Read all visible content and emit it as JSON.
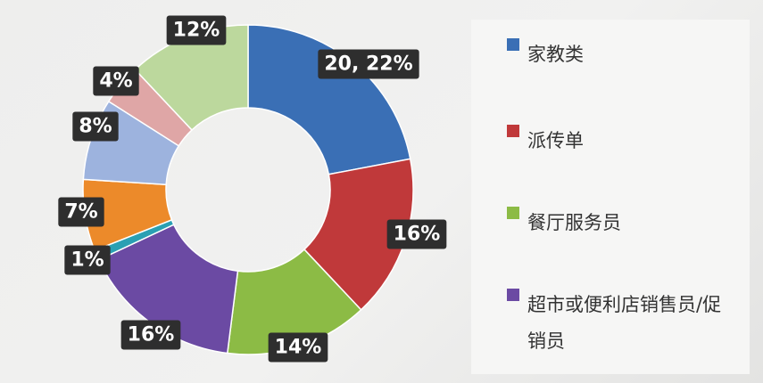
{
  "chart_data": {
    "type": "pie",
    "donut": true,
    "slices": [
      {
        "label": "20, 22%",
        "value": 22,
        "color": "#3a6fb5"
      },
      {
        "label": "16%",
        "value": 16,
        "color": "#c0393a"
      },
      {
        "label": "14%",
        "value": 14,
        "color": "#8cbb45"
      },
      {
        "label": "16%",
        "value": 16,
        "color": "#6b4aa3"
      },
      {
        "label": "1%",
        "value": 1,
        "color": "#2aa0b3"
      },
      {
        "label": "7%",
        "value": 7,
        "color": "#ec8a2a"
      },
      {
        "label": "8%",
        "value": 8,
        "color": "#9db3de"
      },
      {
        "label": "4%",
        "value": 4,
        "color": "#dfa6a6"
      },
      {
        "label": "12%",
        "value": 12,
        "color": "#bcd89d"
      }
    ],
    "legend": [
      {
        "label": "家教类",
        "color": "#3a6fb5"
      },
      {
        "label": "派传单",
        "color": "#c0393a"
      },
      {
        "label": "餐厅服务员",
        "color": "#8cbb45"
      },
      {
        "label": "超市或便利店销售员/促销员",
        "color": "#6b4aa3"
      }
    ],
    "legend_position": "right"
  }
}
